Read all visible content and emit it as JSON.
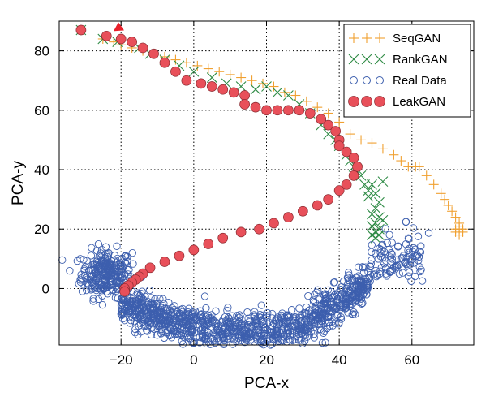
{
  "chart_data": {
    "type": "scatter",
    "xlabel": "PCA-x",
    "ylabel": "PCA-y",
    "xlim": [
      -37,
      77
    ],
    "ylim": [
      -19,
      90
    ],
    "xticks": [
      -20,
      0,
      20,
      40,
      60
    ],
    "yticks": [
      0,
      20,
      40,
      60,
      80
    ],
    "xtick_labels": [
      "−20",
      "0",
      "20",
      "40",
      "60"
    ],
    "ytick_labels": [
      "0",
      "20",
      "40",
      "60",
      "80"
    ],
    "grid": true,
    "grid_style": "dotted",
    "legend_position": "top-right",
    "series": [
      {
        "name": "SeqGAN",
        "marker": "plus",
        "color": "#f0a030",
        "x": [
          -31,
          -25,
          -22,
          -20,
          -17,
          -14,
          -11,
          -8,
          -5,
          -2,
          1,
          4,
          7,
          10,
          13,
          16,
          19,
          22,
          25,
          28,
          31,
          34,
          37,
          40,
          43,
          46,
          49,
          52,
          55,
          57,
          59,
          61,
          62,
          64,
          66,
          68,
          69,
          70,
          71,
          72,
          73,
          73,
          72,
          73,
          74,
          72,
          73,
          74
        ],
        "y": [
          87,
          84,
          83,
          82,
          81,
          80,
          79,
          78,
          77,
          76,
          75,
          74,
          73,
          72,
          71,
          70,
          69,
          68,
          66,
          65,
          63,
          61,
          59,
          56,
          52,
          50,
          49,
          47,
          45,
          43,
          41,
          41,
          41,
          38,
          35,
          32,
          30,
          28,
          26,
          24,
          22,
          21,
          20,
          20,
          20,
          19,
          18,
          19
        ]
      },
      {
        "name": "RankGAN",
        "marker": "x",
        "color": "#2e8b45",
        "x": [
          -31,
          -25,
          -21,
          -15,
          -12,
          -8,
          -4,
          0,
          5,
          9,
          13,
          17,
          20,
          23,
          26,
          29,
          32,
          35,
          37,
          39,
          40,
          42,
          43,
          44,
          45,
          46,
          47,
          48,
          48,
          49,
          50,
          51,
          52,
          50,
          49,
          51,
          52,
          50,
          49,
          51,
          50,
          49,
          51,
          50
        ],
        "y": [
          87,
          84,
          83,
          81,
          79,
          77,
          75,
          73,
          71,
          69,
          68,
          67,
          68,
          66,
          65,
          62,
          59,
          55,
          52,
          50,
          48,
          45,
          43,
          41,
          40,
          38,
          35,
          33,
          31,
          35,
          32,
          29,
          36,
          27,
          25,
          24,
          23,
          22,
          21,
          20,
          19,
          18,
          18,
          17
        ]
      },
      {
        "name": "LeakGAN",
        "marker": "circle",
        "color": "#e8505a",
        "x": [
          -31,
          -24,
          -20,
          -17,
          -14,
          -11,
          -8,
          -5,
          -2,
          2,
          5,
          8,
          11,
          14,
          14,
          17,
          20,
          23,
          26,
          29,
          32,
          35,
          37,
          39,
          40,
          40,
          42,
          44,
          45,
          44,
          42,
          40,
          37,
          34,
          30,
          26,
          22,
          18,
          13,
          8,
          4,
          0,
          -4,
          -8,
          -12,
          -14,
          -15,
          -16,
          -17,
          -18,
          -19,
          -19
        ],
        "y": [
          87,
          85,
          84,
          83,
          81,
          79,
          76,
          73,
          70,
          69,
          68,
          67,
          66,
          65,
          62,
          61,
          60,
          60,
          60,
          60,
          59,
          57,
          55,
          53,
          50,
          48,
          46,
          44,
          41,
          38,
          35,
          33,
          30,
          28,
          26,
          24,
          22,
          20,
          19,
          17,
          15,
          13,
          11,
          9,
          7,
          5,
          4,
          3,
          2,
          1,
          0,
          -1
        ]
      },
      {
        "name": "Real Data",
        "marker": "open-circle",
        "color": "#3d5fae"
      }
    ],
    "marker_detail": {
      "triangle_color": "#e8202a",
      "triangle_x": -20.5,
      "triangle_y": 88
    }
  },
  "legend": {
    "items": [
      "SeqGAN",
      "RankGAN",
      "Real Data",
      "LeakGAN"
    ]
  }
}
